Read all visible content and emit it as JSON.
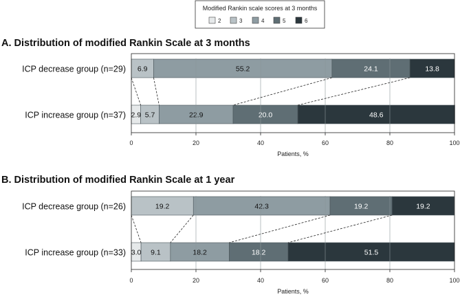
{
  "legend": {
    "title": "Modified Rankin scale scores at 3 months",
    "items": [
      {
        "label": "2",
        "color": "#e6e9ea"
      },
      {
        "label": "3",
        "color": "#b9c2c6"
      },
      {
        "label": "4",
        "color": "#8e9ca2"
      },
      {
        "label": "5",
        "color": "#5f6e74"
      },
      {
        "label": "6",
        "color": "#2b373d"
      }
    ]
  },
  "chart_data": [
    {
      "type": "bar",
      "stacked": "horizontal-100",
      "title": "A. Distribution of modified Rankin Scale at 3 months",
      "xlabel": "Patients, %",
      "xlim": [
        0,
        100
      ],
      "xticks": [
        "0",
        "20",
        "40",
        "60",
        "80",
        "100"
      ],
      "grid": true,
      "categories": [
        "ICP decrease group (n=29)",
        "ICP increase group (n=37)"
      ],
      "series": [
        {
          "name": "2",
          "values": [
            0,
            2.9
          ]
        },
        {
          "name": "3",
          "values": [
            6.9,
            5.7
          ]
        },
        {
          "name": "4",
          "values": [
            55.2,
            22.9
          ]
        },
        {
          "name": "5",
          "values": [
            24.1,
            20.0
          ]
        },
        {
          "name": "6",
          "values": [
            13.8,
            48.6
          ]
        }
      ],
      "labels": [
        [
          "",
          "6.9",
          "55.2",
          "24.1",
          "13.8"
        ],
        [
          "2.9",
          "5.7",
          "22.9",
          "20.0",
          "48.6"
        ]
      ]
    },
    {
      "type": "bar",
      "stacked": "horizontal-100",
      "title": "B. Distribution of modified Rankin Scale at 1 year",
      "xlabel": "Patients, %",
      "xlim": [
        0,
        100
      ],
      "xticks": [
        "0",
        "20",
        "40",
        "60",
        "80",
        "100"
      ],
      "grid": true,
      "categories": [
        "ICP decrease group (n=26)",
        "ICP increase group (n=33)"
      ],
      "series": [
        {
          "name": "2",
          "values": [
            0,
            3.0
          ]
        },
        {
          "name": "3",
          "values": [
            19.2,
            9.1
          ]
        },
        {
          "name": "4",
          "values": [
            42.3,
            18.2
          ]
        },
        {
          "name": "5",
          "values": [
            19.2,
            18.2
          ]
        },
        {
          "name": "6",
          "values": [
            19.2,
            51.5
          ]
        }
      ],
      "labels": [
        [
          "",
          "19.2",
          "42.3",
          "19.2",
          "19.2"
        ],
        [
          "3.0",
          "9.1",
          "18.2",
          "18.2",
          "51.5"
        ]
      ]
    }
  ]
}
